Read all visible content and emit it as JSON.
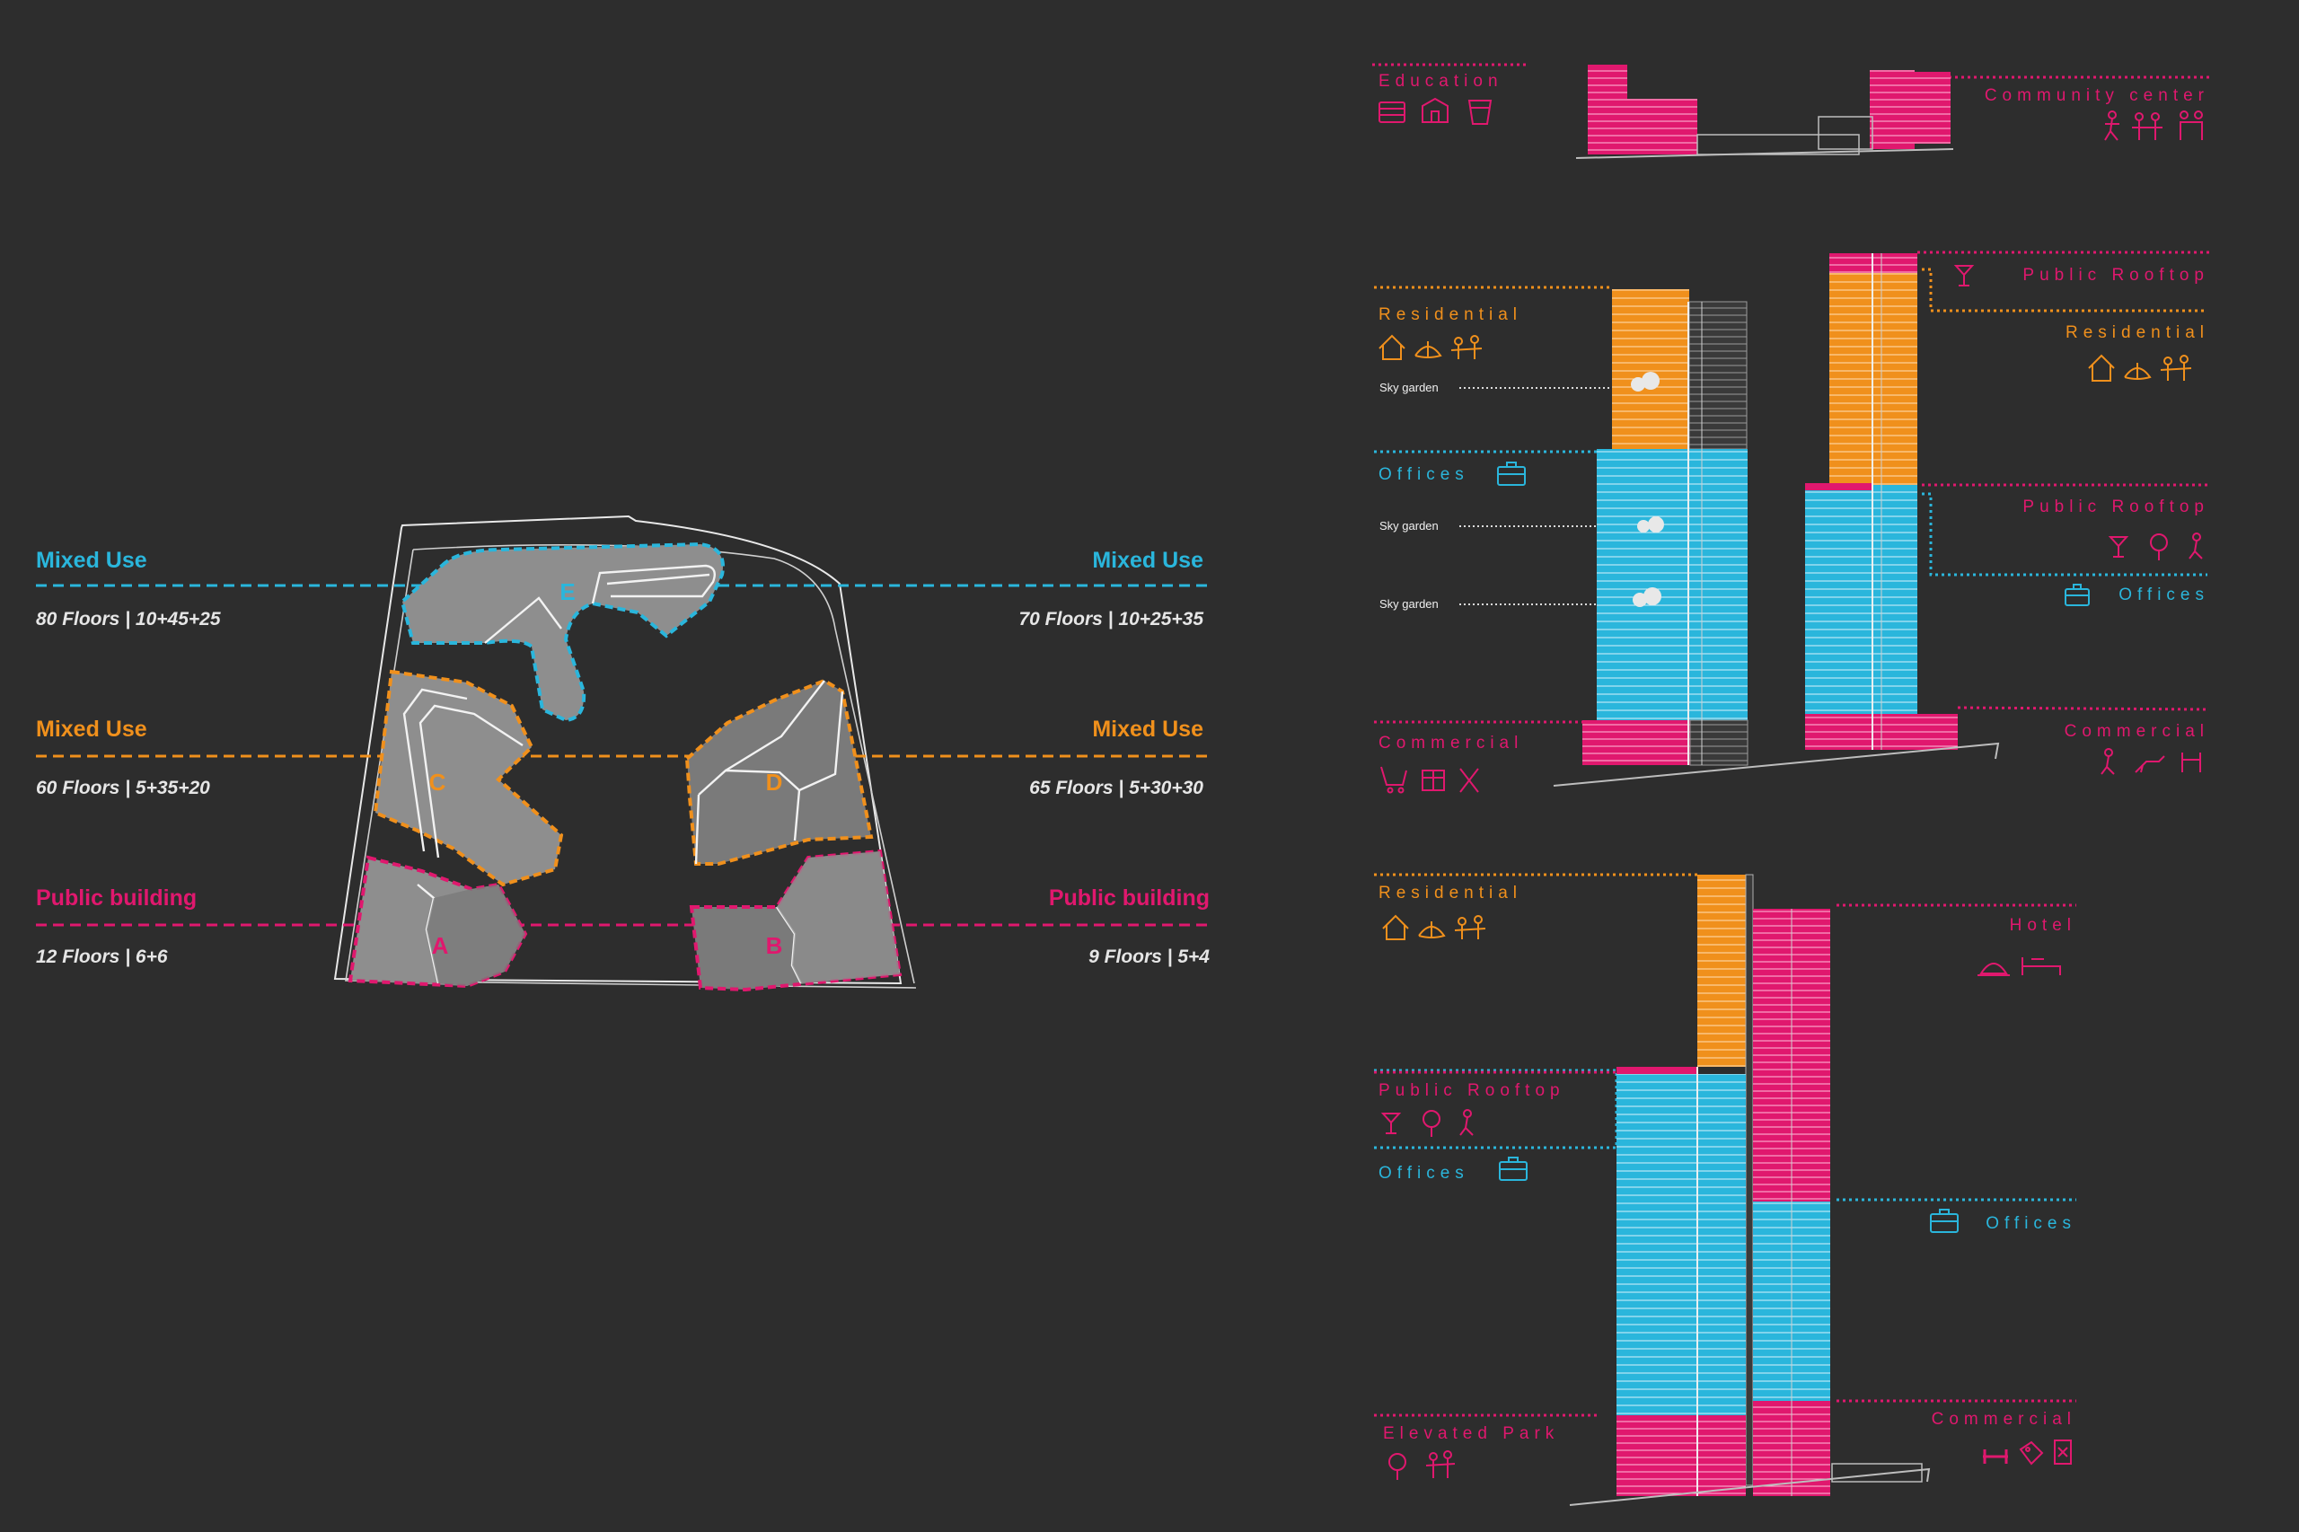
{
  "colors": {
    "background": "#2d2d2d",
    "mixed_use_blue": "#2ab6dc",
    "mixed_use_orange": "#f0901c",
    "public_pink": "#e0186e",
    "plot_grey": "#8e8e8e",
    "plot_dark_grey": "#7a7a7a",
    "site_outline": "#e8e8e8"
  },
  "site_plan": {
    "zones": [
      {
        "label": "Mixed Use",
        "floors": "80 Floors | 10+45+25",
        "color": "blue"
      },
      {
        "label": "Mixed Use",
        "floors": "70 Floors | 10+25+35",
        "color": "blue"
      },
      {
        "label": "Mixed Use",
        "floors": "60 Floors | 5+35+20",
        "color": "orange"
      },
      {
        "label": "Mixed Use",
        "floors": "65 Floors | 5+30+30",
        "color": "orange"
      },
      {
        "label": "Public building",
        "floors": "12 Floors | 6+6",
        "color": "pink"
      },
      {
        "label": "Public building",
        "floors": "9 Floors | 5+4",
        "color": "pink"
      }
    ],
    "plots": [
      "A",
      "B",
      "C",
      "D",
      "E"
    ]
  },
  "program_top": {
    "left_label": "Education",
    "right_label": "Community center"
  },
  "program_middle": {
    "left": [
      "Residential",
      "Offices",
      "Commercial"
    ],
    "right": [
      "Public Rooftop",
      "Residential",
      "Public Rooftop",
      "Offices",
      "Commercial"
    ],
    "sky_gardens": [
      "Sky garden",
      "Sky garden",
      "Sky garden"
    ]
  },
  "program_bottom": {
    "left": [
      "Residential",
      "Public Rooftop",
      "Offices",
      "Elevated Park"
    ],
    "right": [
      "Hotel",
      "Offices",
      "Commercial"
    ]
  },
  "icons": [
    "house-icon",
    "lotus-icon",
    "family-icon",
    "briefcase-icon",
    "cocktail-icon",
    "tree-icon",
    "person-icon",
    "cart-icon",
    "gift-icon",
    "cutlery-icon",
    "book-icon",
    "school-icon",
    "cup-icon",
    "cloche-icon",
    "bed-icon",
    "dumbbell-icon",
    "tag-icon",
    "receipt-icon"
  ]
}
